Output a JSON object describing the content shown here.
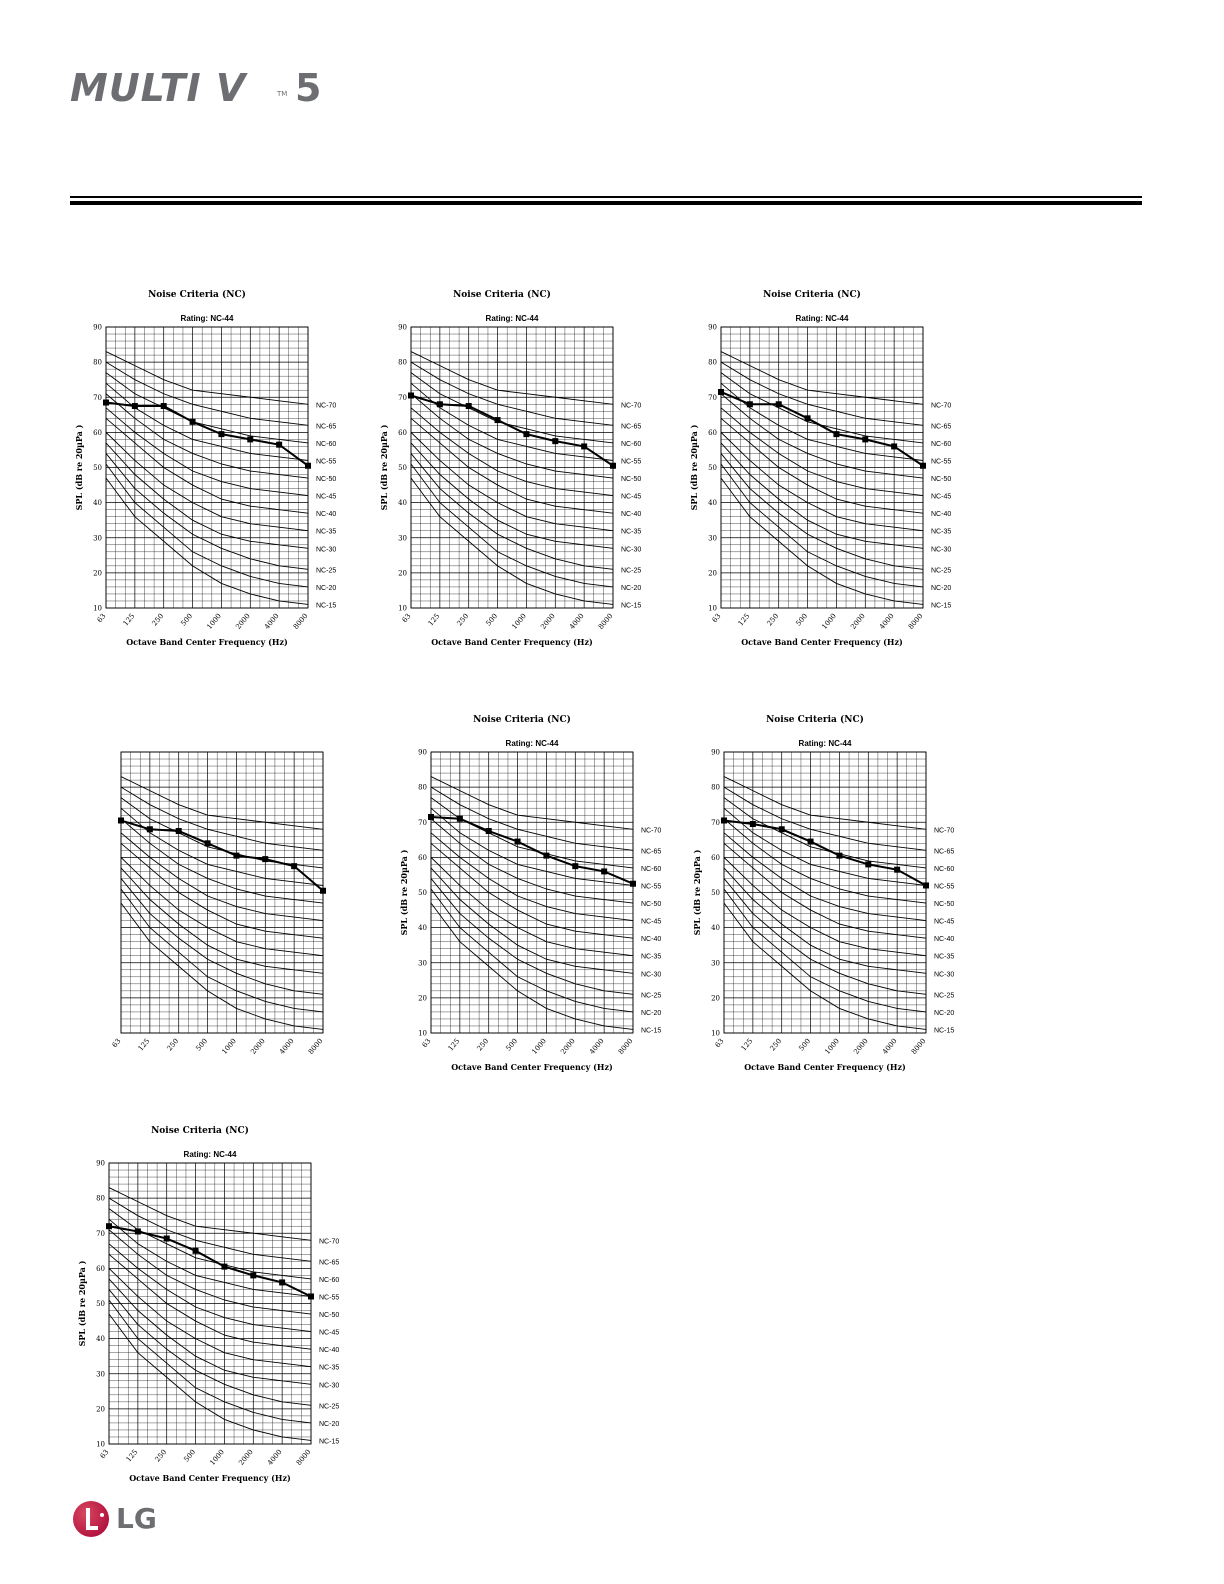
{
  "header": {
    "logo_word": "MULTI V",
    "logo_tm": "TM",
    "logo_num": "5"
  },
  "footer": {
    "logo_text": "LG"
  },
  "nc_reference": {
    "frequencies": [
      "63",
      "125",
      "250",
      "500",
      "1000",
      "2000",
      "4000",
      "8000"
    ],
    "curves": [
      {
        "name": "NC-70",
        "values": [
          83,
          79,
          75,
          72,
          71,
          70,
          69,
          68
        ]
      },
      {
        "name": "NC-65",
        "values": [
          80,
          75,
          71,
          68,
          66,
          64,
          63,
          62
        ]
      },
      {
        "name": "NC-60",
        "values": [
          77,
          71,
          67,
          63,
          61,
          59,
          58,
          57
        ]
      },
      {
        "name": "NC-55",
        "values": [
          74,
          67,
          62,
          58,
          56,
          54,
          53,
          52
        ]
      },
      {
        "name": "NC-50",
        "values": [
          71,
          64,
          58,
          54,
          51,
          49,
          48,
          47
        ]
      },
      {
        "name": "NC-45",
        "values": [
          67,
          60,
          54,
          49,
          46,
          44,
          43,
          42
        ]
      },
      {
        "name": "NC-40",
        "values": [
          64,
          57,
          50,
          45,
          41,
          39,
          38,
          37
        ]
      },
      {
        "name": "NC-35",
        "values": [
          60,
          52,
          45,
          40,
          36,
          34,
          33,
          32
        ]
      },
      {
        "name": "NC-30",
        "values": [
          57,
          48,
          41,
          35,
          31,
          29,
          28,
          27
        ]
      },
      {
        "name": "NC-25",
        "values": [
          54,
          44,
          37,
          31,
          27,
          24,
          22,
          21
        ]
      },
      {
        "name": "NC-20",
        "values": [
          51,
          40,
          33,
          26,
          22,
          19,
          17,
          16
        ]
      },
      {
        "name": "NC-15",
        "values": [
          47,
          36,
          29,
          22,
          17,
          14,
          12,
          11
        ]
      }
    ]
  },
  "chart_data": [
    {
      "type": "line",
      "title": "Noise Criteria (NC)",
      "subtitle": "Rating: NC-44",
      "xlabel": "Octave Band Center Frequency (Hz)",
      "ylabel": "SPL (dB re 20µPa )",
      "ylim": [
        10,
        90
      ],
      "yticks": [
        "10",
        "20",
        "30",
        "40",
        "50",
        "60",
        "70",
        "80",
        "90"
      ],
      "x": [
        "63",
        "125",
        "250",
        "500",
        "1000",
        "2000",
        "4000",
        "8000"
      ],
      "series": [
        {
          "values": [
            68.5,
            67.5,
            67.5,
            63,
            59.5,
            58,
            56.5,
            50.5
          ]
        }
      ],
      "show_text": true,
      "show_curve_labels": true
    },
    {
      "type": "line",
      "title": "Noise Criteria (NC)",
      "subtitle": "Rating: NC-44",
      "xlabel": "Octave Band Center Frequency (Hz)",
      "ylabel": "SPL (dB re 20µPa )",
      "ylim": [
        10,
        90
      ],
      "yticks": [
        "10",
        "20",
        "30",
        "40",
        "50",
        "60",
        "70",
        "80",
        "90"
      ],
      "x": [
        "63",
        "125",
        "250",
        "500",
        "1000",
        "2000",
        "4000",
        "8000"
      ],
      "series": [
        {
          "values": [
            70.5,
            68,
            67.5,
            63.5,
            59.5,
            57.5,
            56,
            50.5
          ]
        }
      ],
      "show_text": true,
      "show_curve_labels": true
    },
    {
      "type": "line",
      "title": "Noise Criteria (NC)",
      "subtitle": "Rating: NC-44",
      "xlabel": "Octave Band Center Frequency (Hz)",
      "ylabel": "SPL (dB re 20µPa )",
      "ylim": [
        10,
        90
      ],
      "yticks": [
        "10",
        "20",
        "30",
        "40",
        "50",
        "60",
        "70",
        "80",
        "90"
      ],
      "x": [
        "63",
        "125",
        "250",
        "500",
        "1000",
        "2000",
        "4000",
        "8000"
      ],
      "series": [
        {
          "values": [
            71.5,
            68,
            68,
            64,
            59.5,
            58,
            56,
            50.5
          ]
        }
      ],
      "show_text": true,
      "show_curve_labels": true
    },
    {
      "type": "line",
      "title": "",
      "subtitle": "",
      "xlabel": "",
      "ylabel": "",
      "ylim": [
        10,
        90
      ],
      "yticks": [],
      "x": [
        "63",
        "125",
        "250",
        "500",
        "1000",
        "2000",
        "4000",
        "8000"
      ],
      "series": [
        {
          "values": [
            70.5,
            68,
            67.5,
            64,
            60.5,
            59.5,
            57.5,
            50.5
          ]
        }
      ],
      "show_text": false,
      "show_curve_labels": false
    },
    {
      "type": "line",
      "title": "Noise Criteria (NC)",
      "subtitle": "Rating: NC-44",
      "xlabel": "Octave Band Center Frequency (Hz)",
      "ylabel": "SPL (dB re 20µPa )",
      "ylim": [
        10,
        90
      ],
      "yticks": [
        "10",
        "20",
        "30",
        "40",
        "50",
        "60",
        "70",
        "80",
        "90"
      ],
      "x": [
        "63",
        "125",
        "250",
        "500",
        "1000",
        "2000",
        "4000",
        "8000"
      ],
      "series": [
        {
          "values": [
            71.5,
            71,
            67.5,
            64.5,
            60.5,
            57.5,
            56,
            52.5
          ]
        }
      ],
      "show_text": true,
      "show_curve_labels": true
    },
    {
      "type": "line",
      "title": "Noise Criteria (NC)",
      "subtitle": "Rating: NC-44",
      "xlabel": "Octave Band Center Frequency (Hz)",
      "ylabel": "SPL (dB re 20µPa )",
      "ylim": [
        10,
        90
      ],
      "yticks": [
        "10",
        "20",
        "30",
        "40",
        "50",
        "60",
        "70",
        "80",
        "90"
      ],
      "x": [
        "63",
        "125",
        "250",
        "500",
        "1000",
        "2000",
        "4000",
        "8000"
      ],
      "series": [
        {
          "values": [
            70.5,
            69.5,
            68,
            64.5,
            60.5,
            58,
            56.5,
            52
          ]
        }
      ],
      "show_text": true,
      "show_curve_labels": true
    },
    {
      "type": "line",
      "title": "Noise Criteria (NC)",
      "subtitle": "Rating: NC-44",
      "xlabel": "Octave Band Center Frequency (Hz)",
      "ylabel": "SPL (dB re 20µPa )",
      "ylim": [
        10,
        90
      ],
      "yticks": [
        "10",
        "20",
        "30",
        "40",
        "50",
        "60",
        "70",
        "80",
        "90"
      ],
      "x": [
        "63",
        "125",
        "250",
        "500",
        "1000",
        "2000",
        "4000",
        "8000"
      ],
      "series": [
        {
          "values": [
            72,
            70.5,
            68.5,
            65,
            60.5,
            58,
            56,
            52
          ]
        }
      ],
      "show_text": true,
      "show_curve_labels": true
    }
  ]
}
